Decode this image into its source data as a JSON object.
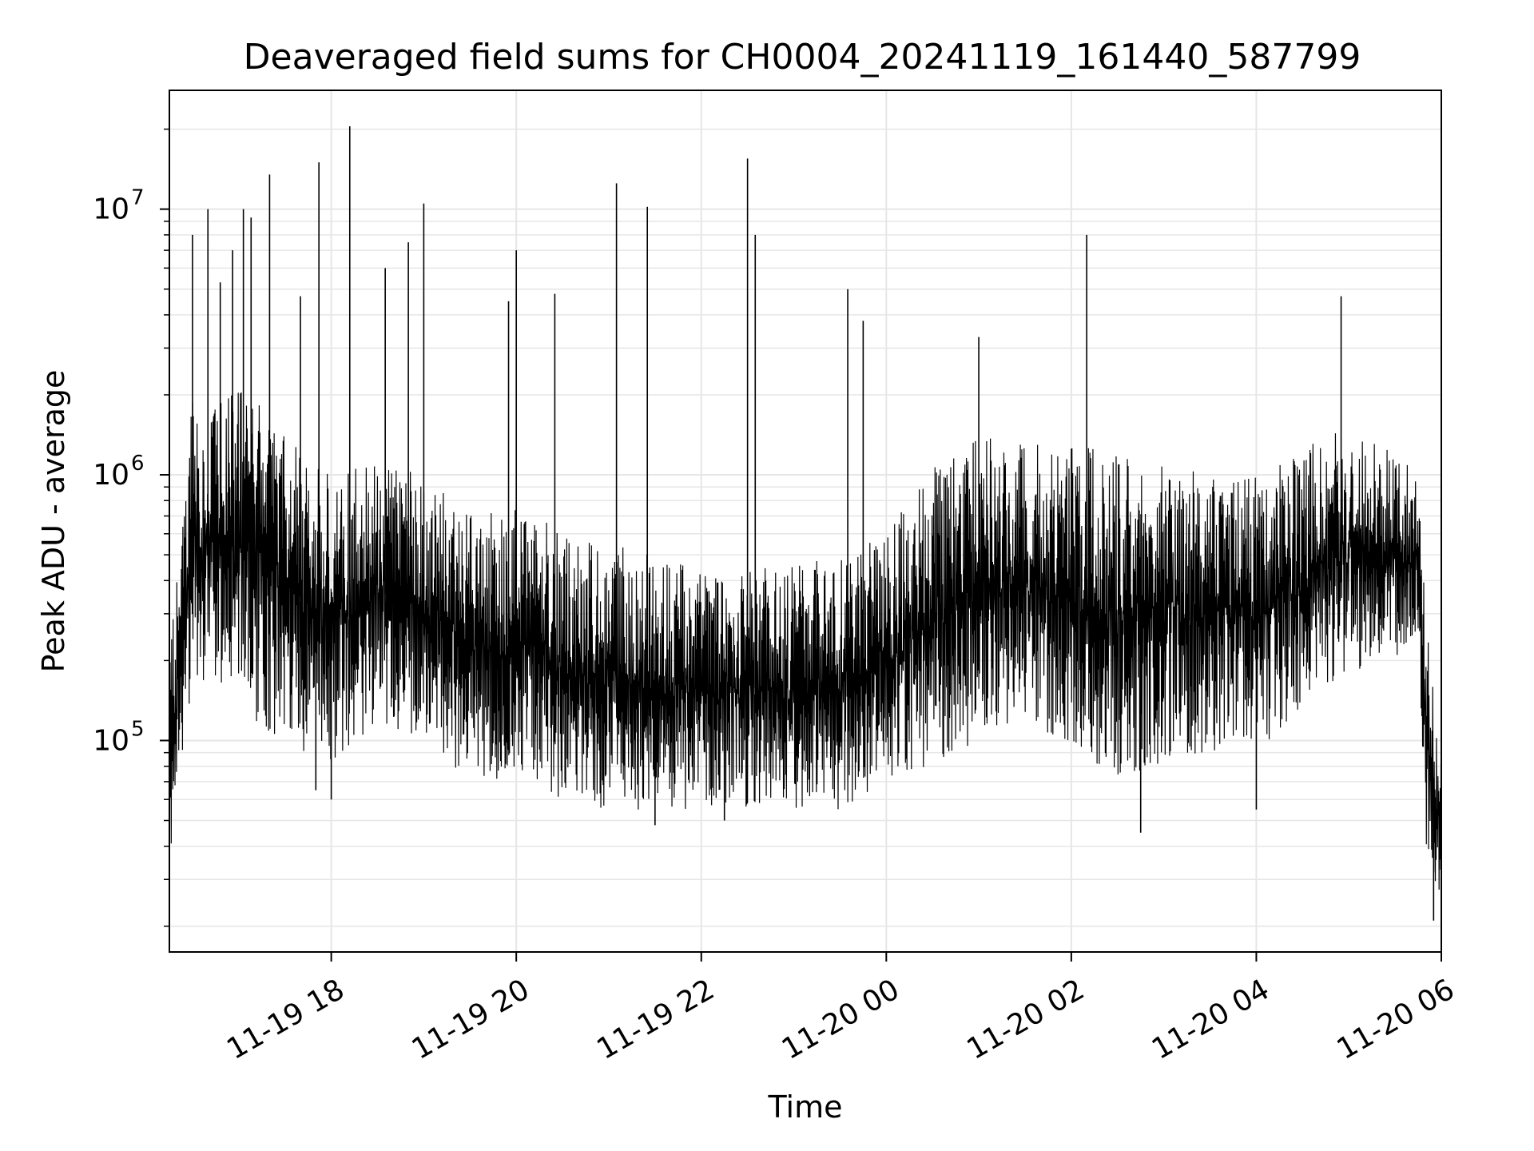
{
  "chart_data": {
    "type": "line",
    "title": "Deaveraged field sums for CH0004_20241119_161440_587799",
    "xlabel": "Time",
    "ylabel": "Peak ADU - average",
    "xscale": "time",
    "yscale": "log",
    "xlim": [
      "2024-11-19 16:15",
      "2024-11-20 06:00"
    ],
    "ylim": [
      16000,
      28000000
    ],
    "grid": true,
    "line_color": "#000000",
    "grid_color": "#e6e6e6",
    "x_ticks": [
      {
        "value": "2024-11-19 18:00",
        "label": "11-19 18"
      },
      {
        "value": "2024-11-19 20:00",
        "label": "11-19 20"
      },
      {
        "value": "2024-11-19 22:00",
        "label": "11-19 22"
      },
      {
        "value": "2024-11-20 00:00",
        "label": "11-20 00"
      },
      {
        "value": "2024-11-20 02:00",
        "label": "11-20 02"
      },
      {
        "value": "2024-11-20 04:00",
        "label": "11-20 04"
      },
      {
        "value": "2024-11-20 06:00",
        "label": "11-20 06"
      }
    ],
    "y_ticks": [
      {
        "value": 100000,
        "base": "10",
        "exp": "5"
      },
      {
        "value": 1000000,
        "base": "10",
        "exp": "6"
      },
      {
        "value": 10000000,
        "base": "10",
        "exp": "7"
      }
    ],
    "series": [
      {
        "name": "",
        "envelope": [
          {
            "x": "2024-11-19 16:15",
            "low": 35000,
            "high": 200000
          },
          {
            "x": "2024-11-19 16:30",
            "low": 150000,
            "high": 1900000
          },
          {
            "x": "2024-11-19 17:00",
            "low": 120000,
            "high": 2200000
          },
          {
            "x": "2024-11-19 17:30",
            "low": 100000,
            "high": 1500000
          },
          {
            "x": "2024-11-19 18:00",
            "low": 80000,
            "high": 1000000
          },
          {
            "x": "2024-11-19 18:30",
            "low": 110000,
            "high": 1200000
          },
          {
            "x": "2024-11-19 19:00",
            "low": 100000,
            "high": 1000000
          },
          {
            "x": "2024-11-19 19:30",
            "low": 70000,
            "high": 700000
          },
          {
            "x": "2024-11-19 20:00",
            "low": 70000,
            "high": 800000
          },
          {
            "x": "2024-11-19 20:30",
            "low": 60000,
            "high": 600000
          },
          {
            "x": "2024-11-19 21:00",
            "low": 55000,
            "high": 550000
          },
          {
            "x": "2024-11-19 21:30",
            "low": 55000,
            "high": 500000
          },
          {
            "x": "2024-11-19 22:00",
            "low": 55000,
            "high": 450000
          },
          {
            "x": "2024-11-19 22:30",
            "low": 55000,
            "high": 450000
          },
          {
            "x": "2024-11-19 23:00",
            "low": 55000,
            "high": 450000
          },
          {
            "x": "2024-11-19 23:30",
            "low": 55000,
            "high": 500000
          },
          {
            "x": "2024-11-20 00:00",
            "low": 70000,
            "high": 600000
          },
          {
            "x": "2024-11-20 00:30",
            "low": 80000,
            "high": 1100000
          },
          {
            "x": "2024-11-20 01:00",
            "low": 100000,
            "high": 1400000
          },
          {
            "x": "2024-11-20 01:30",
            "low": 110000,
            "high": 1300000
          },
          {
            "x": "2024-11-20 02:00",
            "low": 90000,
            "high": 1300000
          },
          {
            "x": "2024-11-20 02:30",
            "low": 70000,
            "high": 1200000
          },
          {
            "x": "2024-11-20 03:00",
            "low": 80000,
            "high": 1100000
          },
          {
            "x": "2024-11-20 03:30",
            "low": 90000,
            "high": 1000000
          },
          {
            "x": "2024-11-20 04:00",
            "low": 90000,
            "high": 1000000
          },
          {
            "x": "2024-11-20 04:30",
            "low": 130000,
            "high": 1300000
          },
          {
            "x": "2024-11-20 05:00",
            "low": 180000,
            "high": 1500000
          },
          {
            "x": "2024-11-20 05:30",
            "low": 200000,
            "high": 1200000
          },
          {
            "x": "2024-11-20 05:45",
            "low": 250000,
            "high": 1000000
          },
          {
            "x": "2024-11-20 05:50",
            "low": 40000,
            "high": 300000
          },
          {
            "x": "2024-11-20 06:00",
            "low": 20000,
            "high": 80000
          }
        ],
        "spikes": [
          {
            "x": "2024-11-19 16:30",
            "y": 8000000
          },
          {
            "x": "2024-11-19 16:40",
            "y": 10000000
          },
          {
            "x": "2024-11-19 16:48",
            "y": 5300000
          },
          {
            "x": "2024-11-19 16:56",
            "y": 7000000
          },
          {
            "x": "2024-11-19 17:03",
            "y": 10000000
          },
          {
            "x": "2024-11-19 17:08",
            "y": 9300000
          },
          {
            "x": "2024-11-19 17:20",
            "y": 13500000
          },
          {
            "x": "2024-11-19 17:40",
            "y": 4700000
          },
          {
            "x": "2024-11-19 17:52",
            "y": 15000000
          },
          {
            "x": "2024-11-19 18:12",
            "y": 20500000
          },
          {
            "x": "2024-11-19 18:35",
            "y": 6000000
          },
          {
            "x": "2024-11-19 18:50",
            "y": 7500000
          },
          {
            "x": "2024-11-19 19:00",
            "y": 10500000
          },
          {
            "x": "2024-11-19 19:55",
            "y": 4500000
          },
          {
            "x": "2024-11-19 20:00",
            "y": 7000000
          },
          {
            "x": "2024-11-19 20:25",
            "y": 4800000
          },
          {
            "x": "2024-11-19 21:05",
            "y": 12500000
          },
          {
            "x": "2024-11-19 21:25",
            "y": 10200000
          },
          {
            "x": "2024-11-19 22:30",
            "y": 15500000
          },
          {
            "x": "2024-11-19 22:35",
            "y": 8000000
          },
          {
            "x": "2024-11-19 23:35",
            "y": 5000000
          },
          {
            "x": "2024-11-19 23:45",
            "y": 3800000
          },
          {
            "x": "2024-11-20 01:00",
            "y": 3300000
          },
          {
            "x": "2024-11-20 02:10",
            "y": 8000000
          },
          {
            "x": "2024-11-20 04:55",
            "y": 4700000
          }
        ],
        "dips": [
          {
            "x": "2024-11-19 17:50",
            "y": 65000
          },
          {
            "x": "2024-11-19 18:00",
            "y": 60000
          },
          {
            "x": "2024-11-19 21:30",
            "y": 48000
          },
          {
            "x": "2024-11-19 22:15",
            "y": 50000
          },
          {
            "x": "2024-11-20 02:45",
            "y": 45000
          },
          {
            "x": "2024-11-20 04:00",
            "y": 55000
          },
          {
            "x": "2024-11-20 05:55",
            "y": 21000
          }
        ]
      }
    ]
  }
}
